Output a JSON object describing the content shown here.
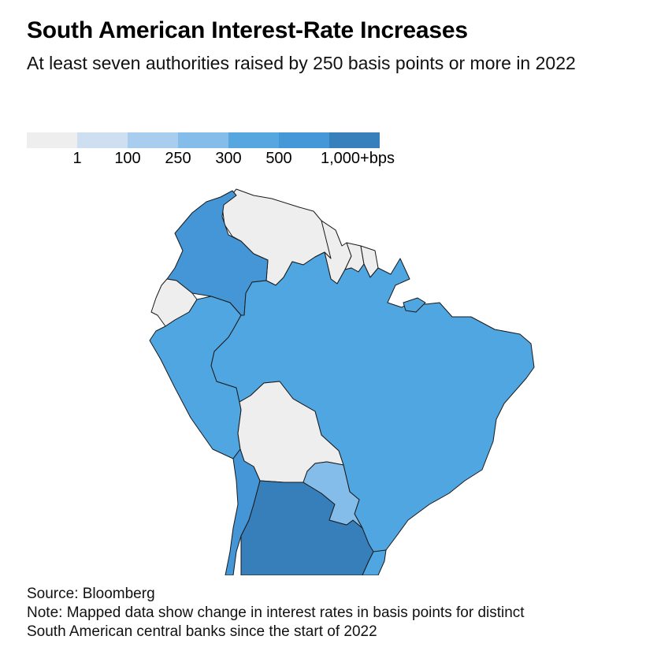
{
  "title": "South American Interest-Rate Increases",
  "subtitle": "At least seven authorities raised by 250 basis points or more in 2022",
  "legend": {
    "colors": [
      "#eeeeee",
      "#cddff1",
      "#a9cdee",
      "#84bde9",
      "#56a7e0",
      "#4498d8",
      "#3880bc"
    ],
    "labels": [
      "1",
      "100",
      "250",
      "300",
      "500",
      "1,000+bps"
    ]
  },
  "colors": {
    "no_change": "#eeeeee",
    "bin_300": "#84bde9",
    "bin_500": "#50a6e0",
    "bin_1000_plus": "#4496d6",
    "darkest": "#377fbb"
  },
  "source": "Source: Bloomberg",
  "note": "Note: Mapped data show change in interest rates in basis points for distinct",
  "note_line2": "South American central banks since the start of 2022"
}
